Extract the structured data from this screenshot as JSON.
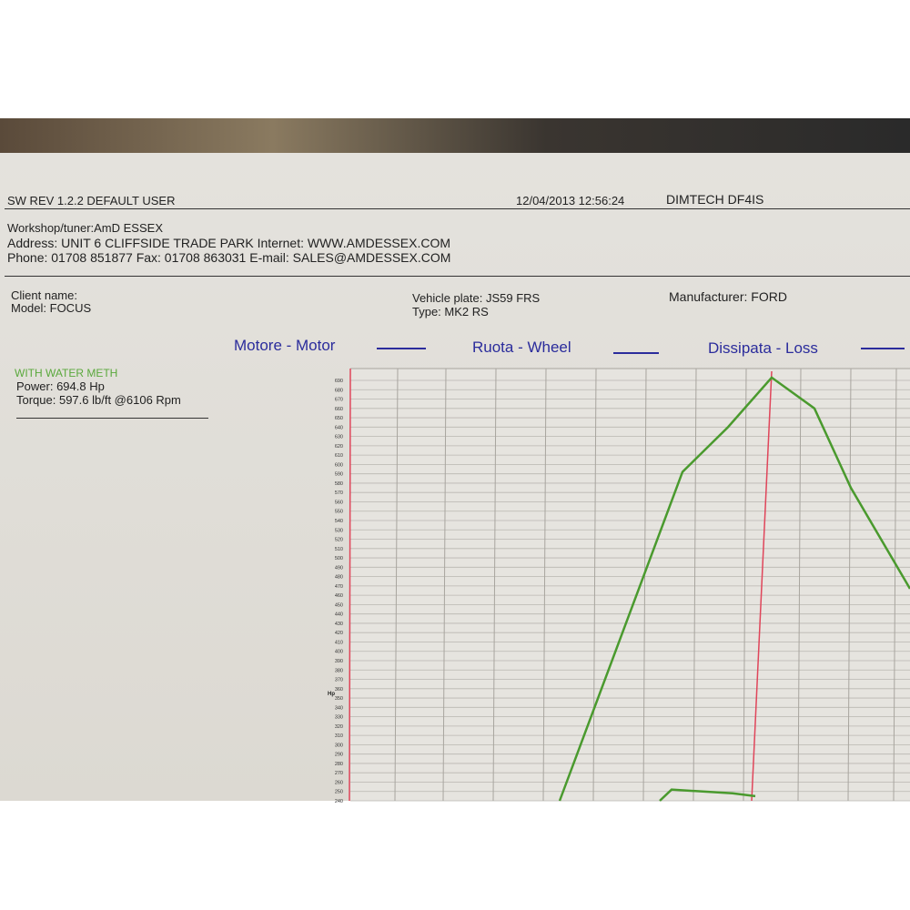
{
  "header": {
    "left": "SW REV 1.2.2   DEFAULT USER",
    "datetime": "12/04/2013 12:56:24",
    "device": "DIMTECH DF4IS"
  },
  "workshop": {
    "tuner": "Workshop/tuner:AmD ESSEX",
    "address": "Address: UNIT 6 CLIFFSIDE TRADE PARK Internet: WWW.AMDESSEX.COM",
    "phone": "Phone: 01708 851877 Fax: 01708 863031 E-mail: SALES@AMDESSEX.COM"
  },
  "vehicle": {
    "client": "Client name:",
    "model": "Model: FOCUS",
    "plate": "Vehicle plate: JS59 FRS",
    "type": "Type: MK2 RS",
    "manufacturer": "Manufacturer: FORD"
  },
  "summary": {
    "note": "WITH WATER METH",
    "power": "Power: 694.8 Hp",
    "torque": "Torque: 597.6 lb/ft @6106 Rpm",
    "note_color": "#5aa83c"
  },
  "chart_data": {
    "type": "line",
    "ylabel": "Hp",
    "ylim": [
      240,
      700
    ],
    "yticks": [
      690,
      680,
      670,
      660,
      650,
      640,
      630,
      620,
      610,
      600,
      590,
      580,
      570,
      560,
      550,
      540,
      530,
      520,
      510,
      500,
      490,
      480,
      470,
      460,
      450,
      440,
      430,
      420,
      410,
      400,
      390,
      380,
      370,
      360,
      350,
      340,
      330,
      320,
      310,
      300,
      290,
      280,
      270,
      260,
      250,
      240
    ],
    "grid": true,
    "legend": [
      "Motore - Motor",
      "Ruota - Wheel",
      "Dissipata - Loss"
    ],
    "legend_placement": "top",
    "series": [
      {
        "values": [
          240,
          592,
          640,
          693,
          660,
          575,
          467
        ],
        "color": "#4a9a2e"
      },
      {
        "values": [
          240,
          252,
          248,
          245
        ],
        "color": "#4a9a2e"
      }
    ],
    "marker_line_color": "#e0455a",
    "legend_color": "#2b2c9c"
  }
}
